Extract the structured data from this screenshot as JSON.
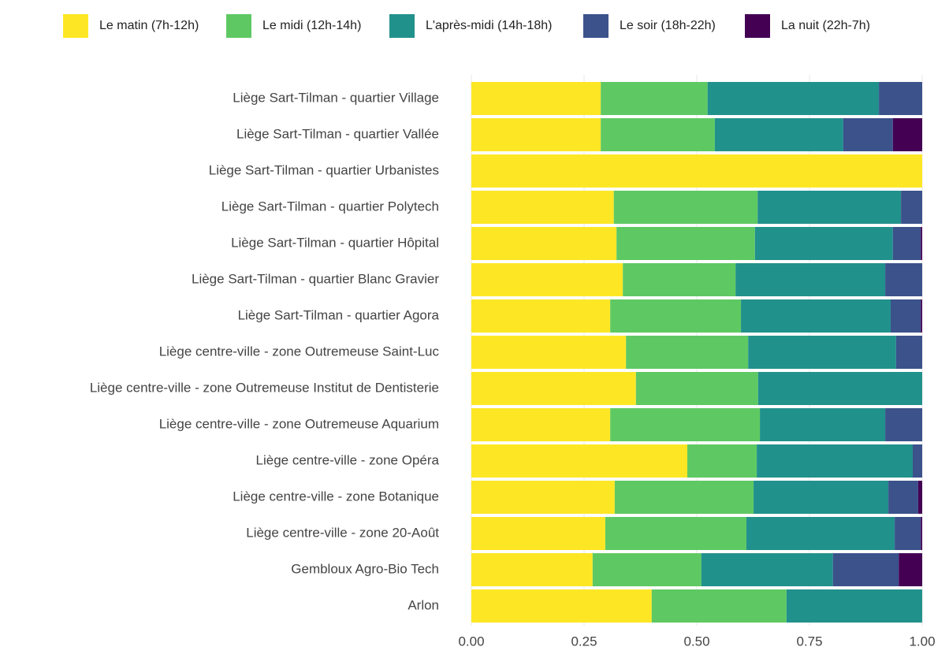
{
  "chart_data": {
    "type": "stacked_barh",
    "categories": [
      "Liège Sart-Tilman - quartier Village",
      "Liège Sart-Tilman - quartier Vallée",
      "Liège Sart-Tilman - quartier Urbanistes",
      "Liège Sart-Tilman - quartier Polytech",
      "Liège Sart-Tilman - quartier Hôpital",
      "Liège Sart-Tilman - quartier Blanc Gravier",
      "Liège Sart-Tilman - quartier Agora",
      "Liège centre-ville - zone Outremeuse Saint-Luc",
      "Liège centre-ville - zone Outremeuse Institut de Dentisterie",
      "Liège centre-ville - zone Outremeuse Aquarium",
      "Liège centre-ville - zone Opéra",
      "Liège centre-ville - zone Botanique",
      "Liège centre-ville - zone 20-Août",
      "Gembloux Agro-Bio Tech",
      "Arlon"
    ],
    "series": [
      {
        "name": "Le matin (7h-12h)",
        "color": "#fde725",
        "values": [
          0.287,
          0.287,
          1.0,
          0.316,
          0.322,
          0.336,
          0.308,
          0.343,
          0.365,
          0.308,
          0.479,
          0.318,
          0.297,
          0.269,
          0.4
        ]
      },
      {
        "name": "Le midi (12h-14h)",
        "color": "#5ec962",
        "values": [
          0.237,
          0.253,
          0,
          0.319,
          0.307,
          0.25,
          0.29,
          0.271,
          0.271,
          0.332,
          0.154,
          0.308,
          0.313,
          0.241,
          0.299
        ]
      },
      {
        "name": "L'après-midi (14h-18h)",
        "color": "#21918c",
        "values": [
          0.38,
          0.285,
          0,
          0.318,
          0.306,
          0.332,
          0.332,
          0.328,
          0.364,
          0.278,
          0.346,
          0.299,
          0.329,
          0.292,
          0.301
        ]
      },
      {
        "name": "Le soir (18h-22h)",
        "color": "#3b528b",
        "values": [
          0.096,
          0.11,
          0,
          0.047,
          0.062,
          0.082,
          0.067,
          0.058,
          0,
          0.082,
          0.021,
          0.066,
          0.058,
          0.146,
          0
        ]
      },
      {
        "name": "La nuit (22h-7h)",
        "color": "#440154",
        "values": [
          0,
          0.065,
          0,
          0,
          0.003,
          0,
          0.003,
          0,
          0,
          0,
          0,
          0.009,
          0.003,
          0.052,
          0
        ]
      }
    ],
    "xlim": [
      0,
      1
    ],
    "xticks": [
      {
        "value": 0,
        "label": "0.00"
      },
      {
        "value": 0.25,
        "label": "0.25"
      },
      {
        "value": 0.5,
        "label": "0.50"
      },
      {
        "value": 0.75,
        "label": "0.75"
      },
      {
        "value": 1,
        "label": "1.00"
      }
    ],
    "grid": true,
    "legend": "top"
  }
}
